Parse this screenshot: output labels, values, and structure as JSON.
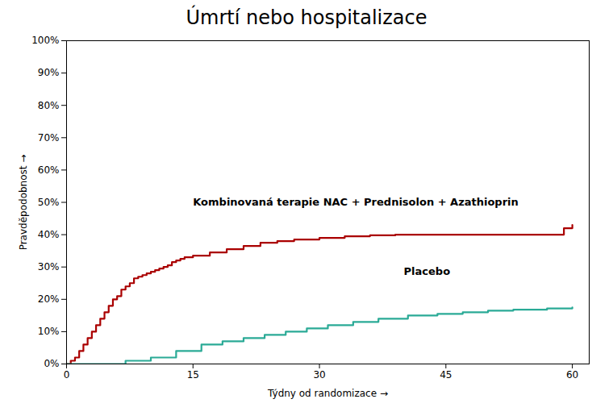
{
  "chart_data": {
    "type": "step",
    "title": "Úmrtí nebo hospitalizace",
    "xlabel": "Týdny od randomizace",
    "ylabel": "Pravděpodobnost",
    "xlim": [
      0,
      62
    ],
    "xticks": [
      0,
      15,
      30,
      45,
      60
    ],
    "ylim": [
      0,
      1.0
    ],
    "yticks": [
      {
        "value": 0,
        "label": "0%"
      },
      {
        "value": 0.1,
        "label": "10%"
      },
      {
        "value": 0.2,
        "label": "20%"
      },
      {
        "value": 0.3,
        "label": "30%"
      },
      {
        "value": 0.4,
        "label": "40%"
      },
      {
        "value": 0.5,
        "label": "50%"
      },
      {
        "value": 0.6,
        "label": "60%"
      },
      {
        "value": 0.7,
        "label": "70%"
      },
      {
        "value": 0.8,
        "label": "80%"
      },
      {
        "value": 0.9,
        "label": "90%"
      },
      {
        "value": 1.0,
        "label": "100%"
      }
    ],
    "grid": false,
    "series": [
      {
        "color": "#aa0000",
        "x": [
          0,
          0.5,
          1.0,
          1.5,
          2.0,
          2.5,
          3.0,
          3.5,
          4.0,
          4.5,
          5.0,
          5.5,
          6.0,
          6.5,
          7.0,
          7.5,
          8.0,
          8.5,
          9.0,
          9.5,
          10.0,
          10.5,
          11.0,
          11.5,
          12.0,
          12.5,
          13.0,
          13.5,
          14.0,
          15.0,
          17.0,
          19.0,
          21.0,
          23.0,
          25.0,
          27.0,
          30.0,
          33.0,
          36.0,
          39.0,
          42.0,
          45.0,
          48.0,
          51.0,
          55.0,
          59.0,
          60.0
        ],
        "values": [
          0.0,
          0.01,
          0.02,
          0.04,
          0.06,
          0.08,
          0.1,
          0.12,
          0.14,
          0.16,
          0.18,
          0.2,
          0.21,
          0.23,
          0.24,
          0.25,
          0.265,
          0.27,
          0.275,
          0.28,
          0.285,
          0.29,
          0.295,
          0.3,
          0.305,
          0.315,
          0.32,
          0.325,
          0.33,
          0.335,
          0.345,
          0.355,
          0.365,
          0.375,
          0.38,
          0.385,
          0.39,
          0.395,
          0.398,
          0.4,
          0.4,
          0.4,
          0.4,
          0.4,
          0.4,
          0.42,
          0.43
        ]
      },
      {
        "color": "#2aaa96",
        "x": [
          0,
          7.0,
          10.0,
          13.0,
          16.0,
          18.5,
          21.0,
          23.5,
          26.0,
          28.5,
          31.0,
          34.0,
          37.0,
          40.5,
          44.0,
          47.0,
          50.0,
          53.0,
          57.0,
          60.0
        ],
        "values": [
          0.0,
          0.01,
          0.02,
          0.04,
          0.06,
          0.07,
          0.08,
          0.09,
          0.1,
          0.11,
          0.12,
          0.13,
          0.14,
          0.15,
          0.155,
          0.16,
          0.165,
          0.168,
          0.172,
          0.175
        ]
      }
    ],
    "annotations": [
      {
        "text": "Kombinovaná terapie NAC + Prednisolon + Azathioprin",
        "x": 15,
        "y": 0.5
      },
      {
        "text": "Placebo",
        "x": 40,
        "y": 0.285
      }
    ]
  }
}
